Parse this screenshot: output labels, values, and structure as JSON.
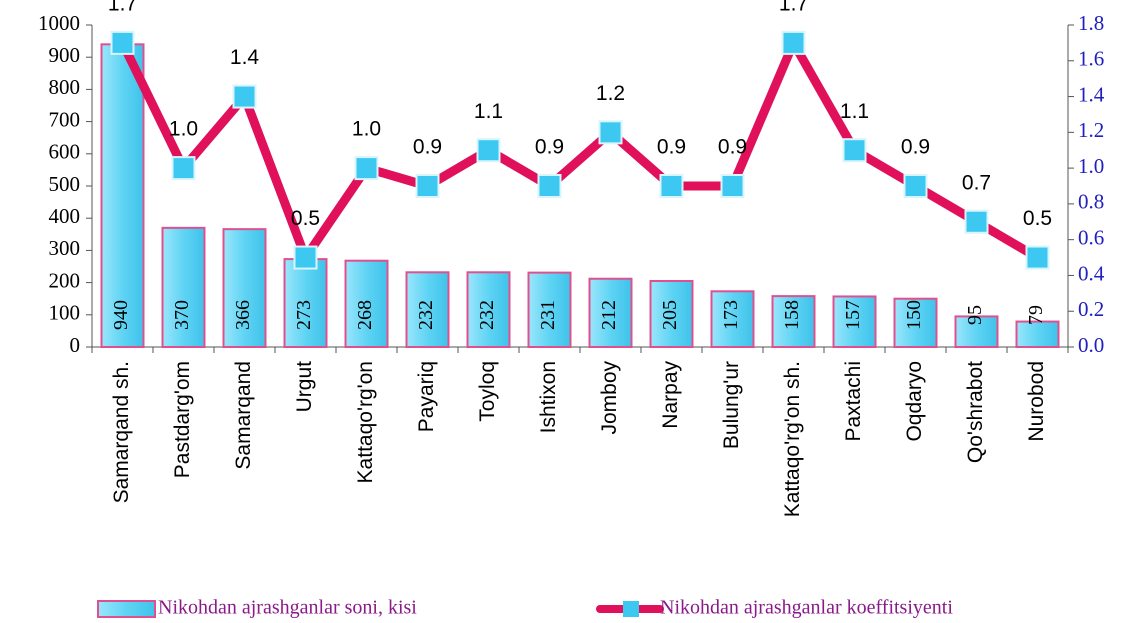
{
  "chart_data": {
    "type": "bar_line",
    "categories": [
      "Samarqand sh.",
      "Pastdarg'om",
      "Samarqand",
      "Urgut",
      "Kattaqo'rg'on",
      "Payariq",
      "Toyloq",
      "Ishtixon",
      "Jomboy",
      "Narpay",
      "Bulung'ur",
      "Kattaqo'rg'on sh.",
      "Paxtachi",
      "Oqdaryo",
      "Qo'shrabot",
      "Nurobod"
    ],
    "series": [
      {
        "name": "Nikohdan ajrashganlar soni, kisi",
        "type": "bar",
        "color": "#5fd4f4",
        "edge_color": "#e0508f",
        "values": [
          940,
          370,
          366,
          273,
          268,
          232,
          232,
          231,
          212,
          205,
          173,
          158,
          157,
          150,
          95,
          79
        ]
      },
      {
        "name": "Nikohdan ajrashganlar koeffitsiyenti",
        "type": "line",
        "axis": "y2",
        "color": "#e0105a",
        "marker_color": "#3cc8f0",
        "values": [
          1.7,
          1.0,
          1.4,
          0.5,
          1.0,
          0.9,
          1.1,
          0.9,
          1.2,
          0.9,
          0.9,
          1.7,
          1.1,
          0.9,
          0.7,
          0.5
        ],
        "value_labels": [
          "1.7",
          "1.0",
          "1.4",
          "0.5",
          "1.0",
          "0.9",
          "1.1",
          "0.9",
          "1.2",
          "0.9",
          "0.9",
          "1.7",
          "1.1",
          "0.9",
          "0.7",
          "0.5"
        ]
      }
    ],
    "ylim": [
      0,
      1000
    ],
    "yticks": [
      0,
      100,
      200,
      300,
      400,
      500,
      600,
      700,
      800,
      900,
      1000
    ],
    "y2lim": [
      0,
      1.8
    ],
    "y2ticks": [
      {
        "value": 0,
        "label": "0.0"
      },
      0.2,
      0.4,
      0.6,
      0.8,
      {
        "value": 1,
        "label": "1.0"
      },
      1.2,
      1.4,
      1.6,
      1.8
    ],
    "legend": "bottom"
  }
}
